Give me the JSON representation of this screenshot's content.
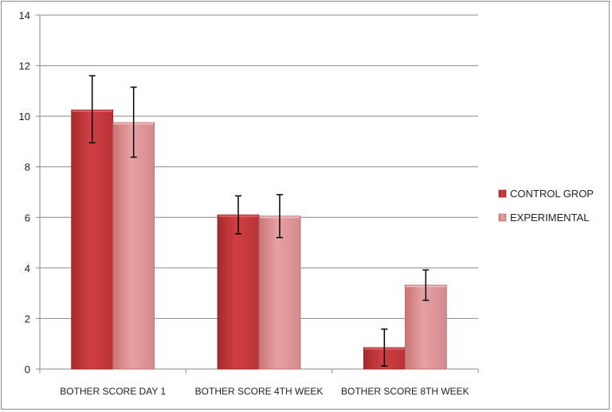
{
  "chart_data": {
    "type": "bar",
    "title": "",
    "xlabel": "",
    "ylabel": "",
    "ylim": [
      0,
      14
    ],
    "yticks": [
      0,
      2,
      4,
      6,
      8,
      10,
      12,
      14
    ],
    "grid": true,
    "legend_position": "right",
    "categories": [
      "BOTHER SCORE DAY 1",
      "BOTHER SCORE 4TH WEEK",
      "BOTHER SCORE 8TH WEEK"
    ],
    "series": [
      {
        "name": "CONTROL GROP",
        "color": "#c0373a",
        "values": [
          10.25,
          6.1,
          0.85
        ],
        "error_low": [
          8.95,
          5.35,
          0.12
        ],
        "error_high": [
          11.6,
          6.85,
          1.58
        ]
      },
      {
        "name": "EXPERIMENTAL",
        "color": "#d98688",
        "values": [
          9.75,
          6.05,
          3.32
        ],
        "error_low": [
          8.38,
          5.2,
          2.72
        ],
        "error_high": [
          11.15,
          6.9,
          3.92
        ]
      }
    ]
  }
}
